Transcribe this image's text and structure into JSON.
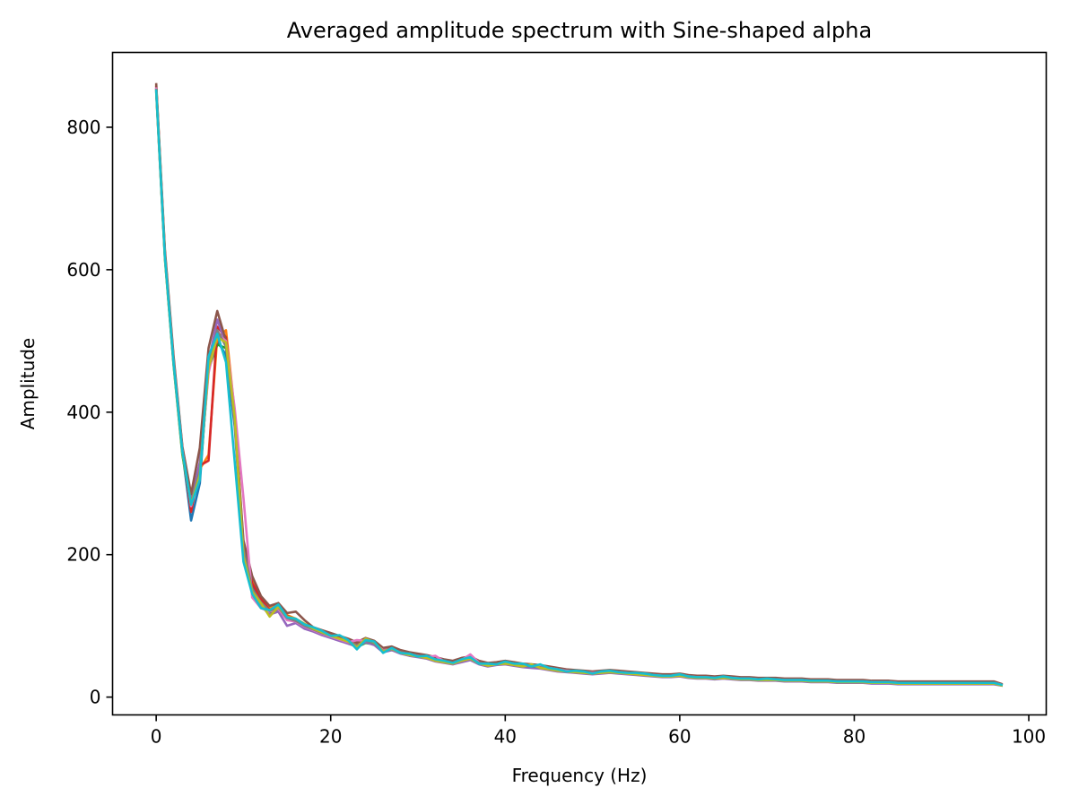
{
  "chart_data": {
    "type": "line",
    "title": "Averaged amplitude spectrum with Sine-shaped alpha",
    "xlabel": "Frequency (Hz)",
    "ylabel": "Amplitude",
    "xlim": [
      -5,
      102
    ],
    "ylim": [
      -25,
      905
    ],
    "xticks": [
      0,
      20,
      40,
      60,
      80,
      100
    ],
    "yticks": [
      0,
      200,
      400,
      600,
      800
    ],
    "grid": false,
    "legend": "none",
    "x": [
      0,
      1,
      2,
      3,
      4,
      5,
      6,
      7,
      8,
      9,
      10,
      11,
      12,
      13,
      14,
      15,
      16,
      17,
      18,
      19,
      20,
      21,
      22,
      23,
      24,
      25,
      26,
      27,
      28,
      29,
      30,
      31,
      32,
      33,
      34,
      35,
      36,
      37,
      38,
      39,
      40,
      41,
      42,
      43,
      44,
      45,
      46,
      47,
      48,
      49,
      50,
      51,
      52,
      53,
      54,
      55,
      56,
      57,
      58,
      59,
      60,
      61,
      62,
      63,
      64,
      65,
      66,
      67,
      68,
      69,
      70,
      71,
      72,
      73,
      74,
      75,
      76,
      77,
      78,
      79,
      80,
      81,
      82,
      83,
      84,
      85,
      86,
      87,
      88,
      89,
      90,
      91,
      92,
      93,
      94,
      95,
      96,
      97
    ],
    "series": [
      {
        "color": "#1f77b4",
        "values": [
          855,
          620,
          470,
          345,
          248,
          300,
          470,
          500,
          480,
          380,
          200,
          155,
          135,
          120,
          125,
          112,
          108,
          100,
          95,
          90,
          85,
          82,
          78,
          72,
          78,
          75,
          65,
          68,
          63,
          60,
          58,
          56,
          52,
          50,
          48,
          52,
          55,
          48,
          45,
          47,
          48,
          46,
          44,
          43,
          42,
          40,
          38,
          37,
          36,
          35,
          34,
          35,
          36,
          35,
          34,
          33,
          32,
          31,
          30,
          30,
          31,
          29,
          28,
          28,
          27,
          28,
          27,
          26,
          26,
          25,
          25,
          25,
          24,
          24,
          24,
          23,
          23,
          23,
          22,
          22,
          22,
          22,
          21,
          21,
          21,
          20,
          20,
          20,
          20,
          20,
          20,
          20,
          20,
          20,
          20,
          20,
          20,
          17
        ]
      },
      {
        "color": "#ff7f0e",
        "values": [
          860,
          625,
          475,
          350,
          265,
          320,
          340,
          505,
          515,
          400,
          215,
          165,
          140,
          125,
          130,
          115,
          110,
          102,
          97,
          92,
          88,
          84,
          80,
          76,
          82,
          78,
          68,
          70,
          65,
          62,
          60,
          58,
          55,
          52,
          50,
          54,
          56,
          50,
          47,
          48,
          50,
          48,
          46,
          45,
          44,
          42,
          40,
          38,
          37,
          36,
          35,
          36,
          37,
          36,
          35,
          34,
          33,
          32,
          31,
          31,
          32,
          30,
          29,
          29,
          28,
          29,
          28,
          27,
          27,
          26,
          26,
          26,
          25,
          25,
          25,
          24,
          24,
          24,
          23,
          23,
          23,
          23,
          22,
          22,
          22,
          21,
          21,
          21,
          21,
          21,
          21,
          21,
          21,
          21,
          21,
          21,
          21,
          18
        ]
      },
      {
        "color": "#2ca02c",
        "values": [
          850,
          615,
          465,
          340,
          270,
          310,
          460,
          495,
          490,
          390,
          205,
          150,
          130,
          118,
          122,
          110,
          106,
          98,
          93,
          88,
          84,
          80,
          76,
          70,
          76,
          74,
          64,
          66,
          62,
          59,
          57,
          55,
          51,
          49,
          47,
          50,
          53,
          47,
          44,
          46,
          47,
          45,
          43,
          42,
          41,
          39,
          37,
          36,
          35,
          34,
          33,
          34,
          35,
          34,
          33,
          32,
          31,
          30,
          29,
          29,
          30,
          28,
          27,
          27,
          26,
          27,
          26,
          25,
          25,
          24,
          24,
          24,
          23,
          23,
          23,
          22,
          22,
          22,
          21,
          21,
          21,
          21,
          20,
          20,
          20,
          19,
          19,
          19,
          19,
          19,
          19,
          19,
          19,
          19,
          19,
          19,
          19,
          16
        ]
      },
      {
        "color": "#d62728",
        "values": [
          858,
          622,
          472,
          348,
          260,
          325,
          332,
          520,
          505,
          395,
          210,
          160,
          138,
          122,
          128,
          114,
          109,
          101,
          96,
          91,
          86,
          83,
          79,
          74,
          80,
          76,
          66,
          69,
          64,
          61,
          59,
          57,
          53,
          51,
          49,
          53,
          55,
          49,
          46,
          47,
          49,
          47,
          45,
          44,
          43,
          41,
          39,
          37,
          36,
          35,
          34,
          35,
          36,
          35,
          34,
          33,
          32,
          31,
          30,
          30,
          31,
          29,
          28,
          28,
          27,
          28,
          27,
          26,
          26,
          25,
          25,
          25,
          24,
          24,
          24,
          23,
          23,
          23,
          22,
          22,
          22,
          22,
          21,
          21,
          21,
          20,
          20,
          20,
          20,
          20,
          20,
          20,
          20,
          20,
          20,
          20,
          20,
          17
        ]
      },
      {
        "color": "#9467bd",
        "values": [
          852,
          618,
          468,
          344,
          275,
          330,
          470,
          530,
          495,
          385,
          200,
          145,
          128,
          116,
          120,
          100,
          104,
          96,
          92,
          87,
          83,
          79,
          75,
          71,
          77,
          73,
          63,
          66,
          61,
          58,
          56,
          54,
          50,
          48,
          46,
          49,
          52,
          46,
          43,
          45,
          46,
          44,
          42,
          41,
          40,
          38,
          36,
          35,
          34,
          33,
          32,
          33,
          34,
          33,
          32,
          31,
          30,
          29,
          28,
          28,
          29,
          27,
          26,
          26,
          25,
          26,
          25,
          24,
          24,
          23,
          23,
          23,
          22,
          22,
          22,
          21,
          21,
          21,
          20,
          20,
          20,
          20,
          19,
          19,
          19,
          18,
          18,
          18,
          18,
          18,
          18,
          18,
          18,
          18,
          18,
          18,
          18,
          16
        ]
      },
      {
        "color": "#8c564b",
        "values": [
          862,
          628,
          478,
          352,
          285,
          350,
          490,
          542,
          500,
          390,
          220,
          170,
          142,
          128,
          132,
          118,
          120,
          108,
          98,
          94,
          90,
          86,
          82,
          77,
          83,
          79,
          69,
          71,
          66,
          63,
          61,
          59,
          56,
          53,
          51,
          55,
          57,
          51,
          48,
          49,
          51,
          49,
          47,
          46,
          45,
          43,
          41,
          39,
          38,
          37,
          36,
          37,
          38,
          37,
          36,
          35,
          34,
          33,
          32,
          32,
          33,
          31,
          30,
          30,
          29,
          30,
          29,
          28,
          28,
          27,
          27,
          27,
          26,
          26,
          26,
          25,
          25,
          25,
          24,
          24,
          24,
          24,
          23,
          23,
          23,
          22,
          22,
          22,
          22,
          22,
          22,
          22,
          22,
          22,
          22,
          22,
          22,
          18
        ]
      },
      {
        "color": "#e377c2",
        "values": [
          856,
          621,
          471,
          347,
          268,
          315,
          455,
          510,
          500,
          405,
          280,
          140,
          125,
          120,
          124,
          108,
          106,
          99,
          94,
          89,
          85,
          81,
          77,
          80,
          79,
          75,
          66,
          67,
          63,
          60,
          58,
          56,
          58,
          50,
          48,
          52,
          60,
          48,
          45,
          46,
          49,
          47,
          45,
          44,
          43,
          41,
          39,
          37,
          36,
          35,
          34,
          35,
          36,
          35,
          34,
          33,
          32,
          31,
          30,
          30,
          31,
          29,
          28,
          28,
          27,
          28,
          27,
          26,
          26,
          25,
          25,
          25,
          24,
          24,
          24,
          23,
          23,
          23,
          22,
          22,
          22,
          22,
          21,
          21,
          21,
          20,
          20,
          20,
          20,
          20,
          20,
          20,
          20,
          20,
          20,
          20,
          20,
          17
        ]
      },
      {
        "color": "#7f7f7f",
        "values": [
          854,
          619,
          469,
          346,
          272,
          318,
          465,
          515,
          492,
          388,
          208,
          152,
          133,
          121,
          126,
          111,
          107,
          100,
          95,
          90,
          86,
          82,
          78,
          73,
          79,
          75,
          65,
          67,
          63,
          60,
          58,
          56,
          52,
          50,
          48,
          51,
          54,
          48,
          45,
          46,
          48,
          46,
          44,
          43,
          42,
          40,
          38,
          36,
          35,
          34,
          33,
          34,
          35,
          34,
          33,
          32,
          31,
          30,
          29,
          29,
          30,
          28,
          27,
          27,
          26,
          27,
          26,
          25,
          25,
          24,
          24,
          24,
          23,
          23,
          23,
          22,
          22,
          22,
          21,
          21,
          21,
          21,
          20,
          20,
          20,
          19,
          19,
          19,
          19,
          19,
          19,
          19,
          19,
          19,
          19,
          19,
          19,
          16
        ]
      },
      {
        "color": "#bcbd22",
        "values": [
          853,
          617,
          467,
          343,
          270,
          312,
          462,
          505,
          498,
          392,
          198,
          148,
          132,
          113,
          127,
          113,
          110,
          103,
          96,
          91,
          86,
          82,
          78,
          70,
          82,
          77,
          64,
          68,
          62,
          59,
          57,
          55,
          51,
          49,
          47,
          51,
          54,
          47,
          44,
          46,
          47,
          45,
          43,
          46,
          41,
          39,
          37,
          36,
          35,
          34,
          33,
          34,
          35,
          34,
          33,
          32,
          31,
          30,
          29,
          29,
          30,
          28,
          27,
          27,
          26,
          27,
          26,
          25,
          25,
          24,
          24,
          24,
          23,
          23,
          23,
          22,
          22,
          22,
          21,
          21,
          21,
          21,
          20,
          20,
          20,
          19,
          19,
          19,
          19,
          19,
          19,
          19,
          19,
          19,
          19,
          19,
          19,
          16
        ]
      },
      {
        "color": "#17becf",
        "values": [
          853,
          618,
          468,
          345,
          270,
          305,
          478,
          510,
          470,
          330,
          190,
          145,
          125,
          122,
          130,
          112,
          110,
          102,
          98,
          93,
          86,
          87,
          80,
          67,
          80,
          78,
          62,
          69,
          62,
          61,
          57,
          58,
          53,
          51,
          48,
          53,
          56,
          47,
          47,
          46,
          50,
          47,
          47,
          43,
          46,
          41,
          39,
          36,
          37,
          36,
          33,
          36,
          37,
          35,
          34,
          34,
          33,
          31,
          30,
          30,
          32,
          29,
          28,
          28,
          27,
          29,
          27,
          26,
          26,
          25,
          26,
          25,
          24,
          24,
          24,
          23,
          23,
          23,
          22,
          22,
          22,
          22,
          21,
          21,
          21,
          20,
          20,
          20,
          20,
          20,
          20,
          20,
          20,
          20,
          20,
          20,
          20,
          17
        ]
      }
    ]
  }
}
